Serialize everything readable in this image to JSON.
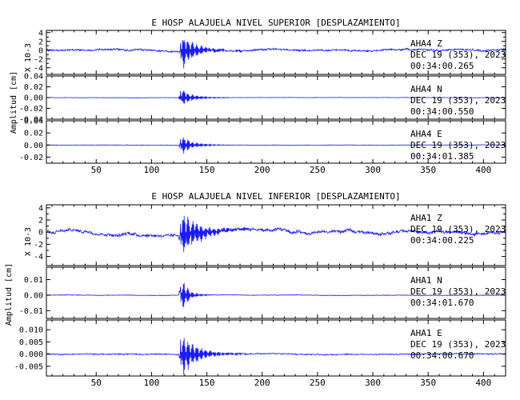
{
  "chart_data": [
    {
      "type": "line",
      "title": "E HOSP ALAJUELA NIVEL SUPERIOR [DESPLAZAMIENTO]",
      "ylabel": "Amplitud [cm]",
      "scale_note": "X 10-3",
      "xlim": [
        5,
        420
      ],
      "xticks": [
        50,
        100,
        150,
        200,
        250,
        300,
        350,
        400
      ],
      "line_color": "#1a1aff",
      "panels": [
        {
          "station": "AHA4",
          "component": "Z",
          "date": "DEC 19 (353), 2023",
          "time": "00:34:00.265",
          "ylim": [
            -5.5,
            4.5
          ],
          "yticks": [
            4,
            3,
            2,
            1,
            0,
            -1,
            -2,
            -3,
            -4
          ],
          "yticklabels": [
            "4",
            "",
            "2",
            "",
            "0",
            "",
            "-2",
            "",
            "-4"
          ],
          "noise": 0.35,
          "drift": 0.6,
          "peak_t": 126,
          "peak": 5.0,
          "decay": 13
        },
        {
          "station": "AHA4",
          "component": "N",
          "date": "DEC 19 (353), 2023",
          "time": "00:34:00.550",
          "ylim": [
            -0.04,
            0.04
          ],
          "yticks": [
            0.04,
            0.02,
            0.0,
            -0.02,
            -0.04
          ],
          "yticklabels": [
            "0.04",
            "0.02",
            "0.00",
            "-0.02",
            "-0.04"
          ],
          "noise": 0.0005,
          "drift": 0.0005,
          "peak_t": 126,
          "peak": 0.02,
          "decay": 10
        },
        {
          "station": "AHA4",
          "component": "E",
          "date": "DEC 19 (353), 2023",
          "time": "00:34:01.385",
          "ylim": [
            -0.03,
            0.04
          ],
          "yticks": [
            0.04,
            0.02,
            0.0,
            -0.02
          ],
          "yticklabels": [
            "0.04",
            "0.02",
            "0.00",
            "-0.02"
          ],
          "noise": 0.0005,
          "drift": 0.0005,
          "peak_t": 126,
          "peak": 0.02,
          "decay": 10
        }
      ]
    },
    {
      "type": "line",
      "title": "E HOSP ALAJUELA NIVEL INFERIOR [DESPLAZAMIENTO]",
      "ylabel": "Amplitud [cm]",
      "scale_note": "X 10-3",
      "xlim": [
        5,
        420
      ],
      "xticks": [
        50,
        100,
        150,
        200,
        250,
        300,
        350,
        400
      ],
      "line_color": "#1a1aff",
      "panels": [
        {
          "station": "AHA1",
          "component": "Z",
          "date": "DEC 19 (353), 2023",
          "time": "00:34:00.225",
          "ylim": [
            -5.5,
            4.5
          ],
          "yticks": [
            4,
            3,
            2,
            1,
            0,
            -1,
            -2,
            -3,
            -4
          ],
          "yticklabels": [
            "4",
            "",
            "2",
            "",
            "0",
            "",
            "-2",
            "",
            "-4"
          ],
          "noise": 0.4,
          "drift": 0.9,
          "peak_t": 126,
          "peak": 4.2,
          "decay": 18
        },
        {
          "station": "AHA1",
          "component": "N",
          "date": "DEC 19 (353), 2023",
          "time": "00:34:01.670",
          "ylim": [
            -0.015,
            0.018
          ],
          "yticks": [
            0.01,
            0.0,
            -0.01
          ],
          "yticklabels": [
            "0.01",
            "0.00",
            "-0.01"
          ],
          "noise": 0.0003,
          "drift": 0.0003,
          "peak_t": 126,
          "peak": 0.015,
          "decay": 6
        },
        {
          "station": "AHA1",
          "component": "E",
          "date": "DEC 19 (353), 2023",
          "time": "00:34:00.670",
          "ylim": [
            -0.009,
            0.014
          ],
          "yticks": [
            0.01,
            0.005,
            0.0,
            -0.005
          ],
          "yticklabels": [
            "0.010",
            "0.005",
            "0.000",
            "-0.005"
          ],
          "noise": 0.0004,
          "drift": 0.0004,
          "peak_t": 126,
          "peak": 0.011,
          "decay": 14
        }
      ]
    }
  ]
}
